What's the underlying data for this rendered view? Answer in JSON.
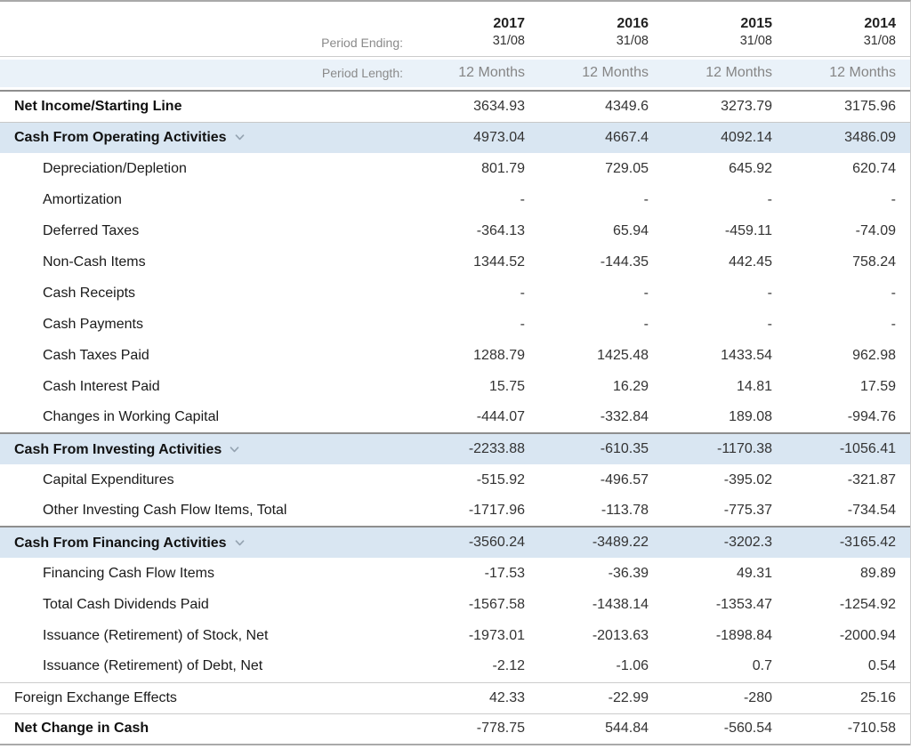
{
  "table": {
    "period_ending_label": "Period Ending:",
    "period_length_label": "Period Length:",
    "columns": [
      {
        "year": "2017",
        "date": "31/08",
        "length": "12 Months"
      },
      {
        "year": "2016",
        "date": "31/08",
        "length": "12 Months"
      },
      {
        "year": "2015",
        "date": "31/08",
        "length": "12 Months"
      },
      {
        "year": "2014",
        "date": "31/08",
        "length": "12 Months"
      }
    ],
    "rows": [
      {
        "label": "Net Income/Starting Line",
        "style": "bold",
        "values": [
          "3634.93",
          "4349.6",
          "3273.79",
          "3175.96"
        ]
      },
      {
        "label": "Cash From Operating Activities",
        "style": "section-light",
        "values": [
          "4973.04",
          "4667.4",
          "4092.14",
          "3486.09"
        ]
      },
      {
        "label": "Depreciation/Depletion",
        "style": "indent",
        "values": [
          "801.79",
          "729.05",
          "645.92",
          "620.74"
        ]
      },
      {
        "label": "Amortization",
        "style": "indent",
        "values": [
          "-",
          "-",
          "-",
          "-"
        ]
      },
      {
        "label": "Deferred Taxes",
        "style": "indent",
        "values": [
          "-364.13",
          "65.94",
          "-459.11",
          "-74.09"
        ]
      },
      {
        "label": "Non-Cash Items",
        "style": "indent",
        "values": [
          "1344.52",
          "-144.35",
          "442.45",
          "758.24"
        ]
      },
      {
        "label": "Cash Receipts",
        "style": "indent",
        "values": [
          "-",
          "-",
          "-",
          "-"
        ]
      },
      {
        "label": "Cash Payments",
        "style": "indent",
        "values": [
          "-",
          "-",
          "-",
          "-"
        ]
      },
      {
        "label": "Cash Taxes Paid",
        "style": "indent",
        "values": [
          "1288.79",
          "1425.48",
          "1433.54",
          "962.98"
        ]
      },
      {
        "label": "Cash Interest Paid",
        "style": "indent",
        "values": [
          "15.75",
          "16.29",
          "14.81",
          "17.59"
        ]
      },
      {
        "label": "Changes in Working Capital",
        "style": "indent",
        "values": [
          "-444.07",
          "-332.84",
          "189.08",
          "-994.76"
        ]
      },
      {
        "label": "Cash From Investing Activities",
        "style": "section-dark",
        "values": [
          "-2233.88",
          "-610.35",
          "-1170.38",
          "-1056.41"
        ]
      },
      {
        "label": "Capital Expenditures",
        "style": "indent",
        "values": [
          "-515.92",
          "-496.57",
          "-395.02",
          "-321.87"
        ]
      },
      {
        "label": "Other Investing Cash Flow Items, Total",
        "style": "indent",
        "values": [
          "-1717.96",
          "-113.78",
          "-775.37",
          "-734.54"
        ]
      },
      {
        "label": "Cash From Financing Activities",
        "style": "section-dark",
        "values": [
          "-3560.24",
          "-3489.22",
          "-3202.3",
          "-3165.42"
        ]
      },
      {
        "label": "Financing Cash Flow Items",
        "style": "indent",
        "values": [
          "-17.53",
          "-36.39",
          "49.31",
          "89.89"
        ]
      },
      {
        "label": "Total Cash Dividends Paid",
        "style": "indent",
        "values": [
          "-1567.58",
          "-1438.14",
          "-1353.47",
          "-1254.92"
        ]
      },
      {
        "label": "Issuance (Retirement) of Stock, Net",
        "style": "indent",
        "values": [
          "-1973.01",
          "-2013.63",
          "-1898.84",
          "-2000.94"
        ]
      },
      {
        "label": "Issuance (Retirement) of Debt, Net",
        "style": "indent",
        "values": [
          "-2.12",
          "-1.06",
          "0.7",
          "0.54"
        ]
      },
      {
        "label": "Foreign Exchange Effects",
        "style": "plain",
        "values": [
          "42.33",
          "-22.99",
          "-280",
          "25.16"
        ]
      },
      {
        "label": "Net Change in Cash",
        "style": "bold-last",
        "values": [
          "-778.75",
          "544.84",
          "-560.54",
          "-710.58"
        ]
      }
    ]
  },
  "icons": {
    "section_expand": "chevron-down-icon"
  },
  "colors": {
    "section_header_bg": "#d9e6f2",
    "period_length_row_bg": "#eaf2f9",
    "dark_divider": "#8e8e8e",
    "light_divider": "#cccccc",
    "outer_border": "#a9a9a9",
    "muted_text": "#8a8a8a",
    "value_text": "#333333",
    "chevron": "#95a3b1"
  }
}
